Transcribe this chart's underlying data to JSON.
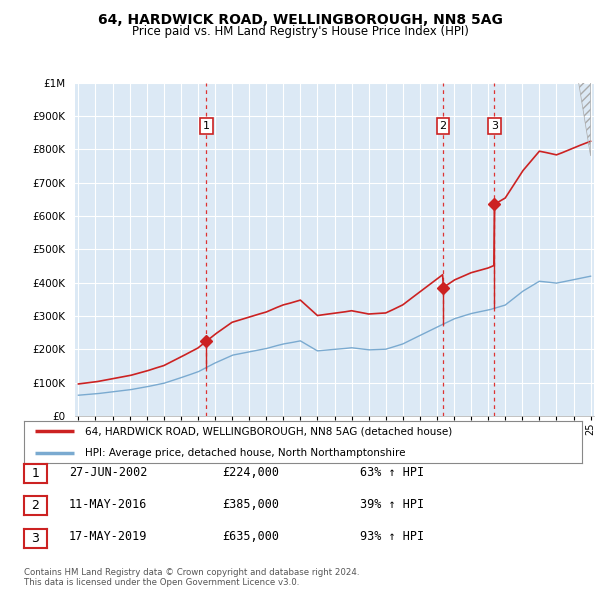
{
  "title": "64, HARDWICK ROAD, WELLINGBOROUGH, NN8 5AG",
  "subtitle": "Price paid vs. HM Land Registry's House Price Index (HPI)",
  "background_color": "#ffffff",
  "plot_background_color": "#dce9f5",
  "grid_color": "#ffffff",
  "ylim": [
    0,
    1000000
  ],
  "yticks": [
    0,
    100000,
    200000,
    300000,
    400000,
    500000,
    600000,
    700000,
    800000,
    900000,
    1000000
  ],
  "ytick_labels": [
    "£0",
    "£100K",
    "£200K",
    "£300K",
    "£400K",
    "£500K",
    "£600K",
    "£700K",
    "£800K",
    "£900K",
    "£1M"
  ],
  "transactions": [
    {
      "date": 2002.49,
      "price": 224000,
      "label": "1"
    },
    {
      "date": 2016.36,
      "price": 385000,
      "label": "2"
    },
    {
      "date": 2019.37,
      "price": 635000,
      "label": "3"
    }
  ],
  "vline_color": "#dd3333",
  "hpi_color": "#7aaad0",
  "price_color": "#cc2222",
  "dot_color": "#cc2222",
  "legend_entries": [
    "64, HARDWICK ROAD, WELLINGBOROUGH, NN8 5AG (detached house)",
    "HPI: Average price, detached house, North Northamptonshire"
  ],
  "footer_text": "Contains HM Land Registry data © Crown copyright and database right 2024.\nThis data is licensed under the Open Government Licence v3.0.",
  "table_rows": [
    {
      "num": "1",
      "date": "27-JUN-2002",
      "price": "£224,000",
      "hpi": "63% ↑ HPI"
    },
    {
      "num": "2",
      "date": "11-MAY-2016",
      "price": "£385,000",
      "hpi": "39% ↑ HPI"
    },
    {
      "num": "3",
      "date": "17-MAY-2019",
      "price": "£635,000",
      "hpi": "93% ↑ HPI"
    }
  ],
  "xmin": 1995,
  "xmax": 2025,
  "hpi_seed_values": {
    "1995": 62000,
    "1996": 66000,
    "1997": 72000,
    "1998": 78000,
    "1999": 86000,
    "2000": 96000,
    "2001": 113000,
    "2002": 130000,
    "2003": 157000,
    "2004": 180000,
    "2005": 190000,
    "2006": 200000,
    "2007": 215000,
    "2008": 225000,
    "2009": 195000,
    "2010": 200000,
    "2011": 205000,
    "2012": 198000,
    "2013": 200000,
    "2014": 215000,
    "2015": 240000,
    "2016": 265000,
    "2017": 290000,
    "2018": 305000,
    "2019": 315000,
    "2020": 330000,
    "2021": 370000,
    "2022": 400000,
    "2023": 395000,
    "2024": 405000,
    "2025": 415000
  }
}
